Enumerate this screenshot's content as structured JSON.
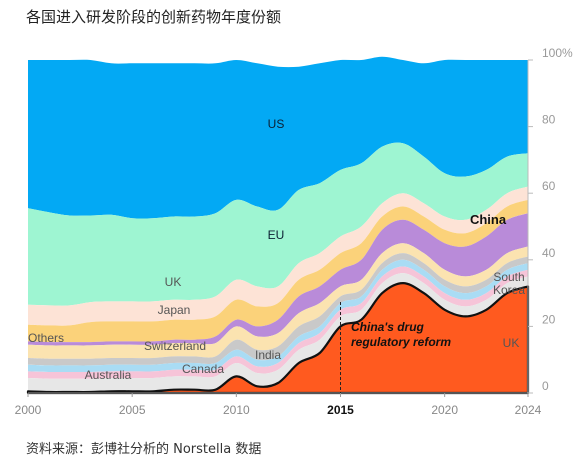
{
  "title": "各国进入研发阶段的创新药物年度份额",
  "source": "资料来源：彭博社分析的 Norstella 数据",
  "chart_data": {
    "type": "area",
    "subtype": "stacked-streamgraph-100pct",
    "x": [
      2000,
      2001,
      2002,
      2003,
      2004,
      2005,
      2006,
      2007,
      2008,
      2009,
      2010,
      2011,
      2012,
      2013,
      2014,
      2015,
      2016,
      2017,
      2018,
      2019,
      2020,
      2021,
      2022,
      2023,
      2024
    ],
    "x_ticks": [
      "2000",
      "2005",
      "2010",
      "2015",
      "2020",
      "2024"
    ],
    "x_ticks_bold": [
      "2015"
    ],
    "y_ticks": [
      "0",
      "20",
      "40",
      "60",
      "80",
      "100%"
    ],
    "ylim": [
      0,
      100
    ],
    "series": [
      {
        "name": "China",
        "color": "#ff5a1f",
        "values": [
          0.5,
          0.3,
          0.3,
          0.3,
          0.5,
          0.5,
          0.5,
          1,
          1,
          1,
          5,
          2,
          3,
          9,
          12,
          20,
          22,
          30,
          33,
          30,
          25,
          23,
          25,
          30,
          32
        ]
      },
      {
        "name": "Others",
        "color": "#e7e7e7",
        "values": [
          4,
          4,
          4,
          4,
          4,
          4,
          4,
          4,
          4,
          4,
          4,
          4,
          4,
          4,
          4,
          3,
          3,
          3,
          3,
          3,
          3,
          3,
          3,
          3,
          3
        ]
      },
      {
        "name": "Australia",
        "color": "#f6c4d8",
        "values": [
          2,
          2,
          2,
          2,
          2,
          2,
          2,
          2,
          2,
          2,
          2,
          2,
          2,
          2,
          2,
          2,
          2,
          2,
          2,
          2,
          2,
          2,
          2,
          2,
          2
        ]
      },
      {
        "name": "Canada",
        "color": "#a9dcf4",
        "values": [
          2,
          2,
          2,
          2,
          2,
          2,
          2,
          2,
          2,
          2,
          2,
          2,
          2,
          2,
          2,
          2,
          2,
          2,
          2,
          2,
          2,
          2,
          2,
          2,
          2
        ]
      },
      {
        "name": "India",
        "color": "#c9c9c9",
        "values": [
          2,
          2,
          2,
          2,
          2,
          2,
          2,
          2,
          2,
          2,
          3,
          3,
          3,
          3,
          3,
          2,
          2,
          2,
          2,
          2,
          2,
          2,
          2,
          2,
          2
        ]
      },
      {
        "name": "Switzerland",
        "color": "#fbe3b0",
        "values": [
          4,
          4,
          4,
          4,
          4,
          4,
          4,
          4,
          4,
          4,
          4,
          4,
          4,
          4,
          4,
          3,
          3,
          3,
          3,
          3,
          3,
          3,
          3,
          3,
          3
        ]
      },
      {
        "name": "South Korea",
        "color": "#b98bd9",
        "values": [
          1,
          1,
          1,
          1,
          1,
          1,
          1,
          1,
          1,
          2,
          2,
          3,
          4,
          5,
          5,
          5,
          6,
          7,
          7,
          7,
          8,
          9,
          10,
          10,
          10
        ]
      },
      {
        "name": "Japan",
        "color": "#fbd27a",
        "values": [
          5,
          5,
          5,
          6,
          6,
          6,
          6,
          6,
          6,
          6,
          6,
          6,
          5,
          5,
          5,
          5,
          5,
          4,
          4,
          4,
          4,
          4,
          4,
          4,
          4
        ]
      },
      {
        "name": "UK",
        "color": "#fde3d6",
        "values": [
          6,
          6,
          6,
          6,
          6,
          6,
          6,
          6,
          6,
          6,
          6,
          6,
          5,
          5,
          5,
          5,
          5,
          4,
          4,
          4,
          4,
          4,
          4,
          4,
          4
        ]
      },
      {
        "name": "EU",
        "color": "#9ef5d2",
        "values": [
          29,
          28,
          27,
          26,
          26,
          25,
          25,
          25,
          25,
          25,
          24,
          24,
          23,
          22,
          21,
          20,
          19,
          17,
          15,
          14,
          13,
          13,
          12,
          11,
          10
        ]
      },
      {
        "name": "US",
        "color": "#03a9f4",
        "values": [
          44.5,
          45.7,
          46.7,
          46.7,
          45.5,
          46.5,
          46.5,
          46,
          46,
          45,
          42,
          43,
          43,
          37,
          36,
          33,
          31,
          27,
          25,
          28,
          34,
          35,
          33,
          29,
          28
        ]
      }
    ],
    "labels": [
      {
        "series": "US",
        "text": "US"
      },
      {
        "series": "EU",
        "text": "EU"
      },
      {
        "series": "China",
        "text": "China"
      },
      {
        "series": "UK",
        "text": "UK"
      },
      {
        "series": "Japan",
        "text": "Japan"
      },
      {
        "series": "Switzerland",
        "text": "Switzerland"
      },
      {
        "series": "Others",
        "text": "Others"
      },
      {
        "series": "Australia",
        "text": "Australia"
      },
      {
        "series": "Canada",
        "text": "Canada"
      },
      {
        "series": "India",
        "text": "India"
      },
      {
        "series": "South Korea",
        "text": "South\nKorea"
      },
      {
        "series": "UK",
        "text": "UK"
      }
    ],
    "annotation": {
      "text": "China's drug\nregulatory reform",
      "x": 2015
    }
  }
}
